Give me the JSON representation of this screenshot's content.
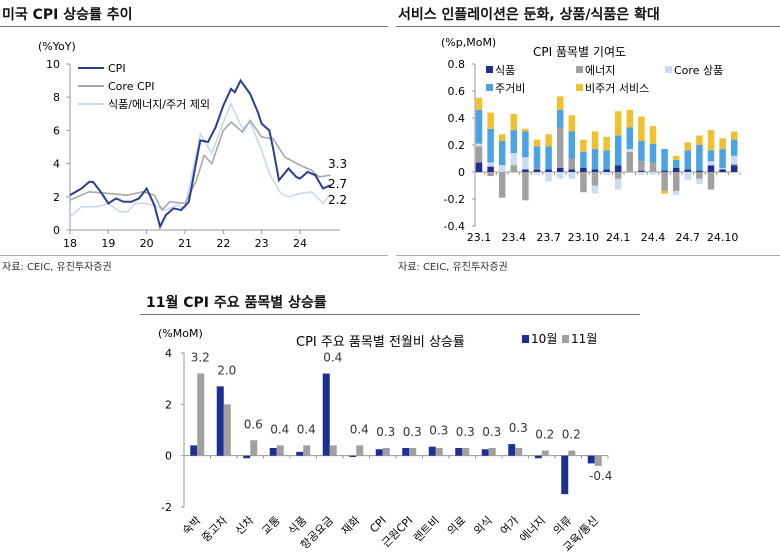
{
  "panels": {
    "left_title": "미국 CPI 상승률 추이",
    "right_title": "서비스 인플레이션은 둔화, 상품/식품은 확대",
    "bottom_title": "11월 CPI 주요 품목별 상승률",
    "source_left": "자료: CEIC, 유진투자증권",
    "source_right": "자료: CEIC, 유진투자증권"
  },
  "colors": {
    "navy": "#1f2f8f",
    "gray": "#a0a0a0",
    "lightblue": "#c8ddf5",
    "blue": "#4ba3e3",
    "gold": "#f0c030",
    "cpi": "#2c3e8c",
    "core": "#a8a8a8",
    "ex": "#c4daf2"
  },
  "chart_data": [
    {
      "type": "line",
      "title": "",
      "ylabel": "(%YoY)",
      "ylim": [
        0,
        10
      ],
      "yticks": [
        "0",
        "2",
        "4",
        "6",
        "8",
        "10"
      ],
      "xticks": [
        "18",
        "19",
        "20",
        "21",
        "22",
        "23",
        "24"
      ],
      "xlim": [
        18,
        24.95
      ],
      "series": [
        {
          "name": "CPI",
          "end_label": "2.7",
          "points": [
            [
              18.0,
              2.1
            ],
            [
              18.3,
              2.5
            ],
            [
              18.5,
              2.9
            ],
            [
              18.6,
              2.9
            ],
            [
              18.8,
              2.3
            ],
            [
              19.0,
              1.6
            ],
            [
              19.2,
              1.9
            ],
            [
              19.4,
              1.7
            ],
            [
              19.6,
              1.7
            ],
            [
              19.8,
              1.9
            ],
            [
              20.0,
              2.5
            ],
            [
              20.2,
              1.5
            ],
            [
              20.35,
              0.2
            ],
            [
              20.5,
              0.9
            ],
            [
              20.7,
              1.3
            ],
            [
              20.9,
              1.2
            ],
            [
              21.1,
              1.7
            ],
            [
              21.3,
              4.2
            ],
            [
              21.4,
              5.4
            ],
            [
              21.6,
              5.3
            ],
            [
              21.8,
              6.2
            ],
            [
              22.0,
              7.5
            ],
            [
              22.2,
              8.5
            ],
            [
              22.3,
              8.3
            ],
            [
              22.45,
              9.0
            ],
            [
              22.7,
              8.2
            ],
            [
              22.9,
              7.1
            ],
            [
              23.0,
              6.4
            ],
            [
              23.2,
              6.0
            ],
            [
              23.3,
              4.9
            ],
            [
              23.45,
              3.0
            ],
            [
              23.7,
              3.7
            ],
            [
              23.9,
              3.2
            ],
            [
              24.0,
              3.1
            ],
            [
              24.2,
              3.5
            ],
            [
              24.4,
              3.3
            ],
            [
              24.6,
              2.5
            ],
            [
              24.8,
              2.7
            ]
          ]
        },
        {
          "name": "Core CPI",
          "end_label": "3.3",
          "points": [
            [
              18.0,
              1.8
            ],
            [
              18.5,
              2.3
            ],
            [
              19.0,
              2.2
            ],
            [
              19.5,
              2.1
            ],
            [
              19.9,
              2.3
            ],
            [
              20.2,
              2.1
            ],
            [
              20.4,
              1.2
            ],
            [
              20.6,
              1.7
            ],
            [
              21.0,
              1.6
            ],
            [
              21.3,
              3.0
            ],
            [
              21.5,
              4.5
            ],
            [
              21.7,
              4.0
            ],
            [
              22.0,
              6.0
            ],
            [
              22.2,
              6.5
            ],
            [
              22.5,
              5.9
            ],
            [
              22.7,
              6.6
            ],
            [
              23.0,
              5.6
            ],
            [
              23.3,
              5.5
            ],
            [
              23.6,
              4.4
            ],
            [
              24.0,
              3.9
            ],
            [
              24.3,
              3.6
            ],
            [
              24.5,
              3.2
            ],
            [
              24.8,
              3.3
            ]
          ]
        },
        {
          "name": "식품/에너지/주거 제외",
          "end_label": "2.2",
          "points": [
            [
              18.0,
              0.8
            ],
            [
              18.3,
              1.4
            ],
            [
              18.7,
              1.4
            ],
            [
              19.0,
              1.6
            ],
            [
              19.3,
              1.1
            ],
            [
              19.5,
              1.1
            ],
            [
              19.7,
              1.6
            ],
            [
              20.0,
              1.6
            ],
            [
              20.3,
              1.4
            ],
            [
              20.5,
              1.2
            ],
            [
              20.8,
              1.5
            ],
            [
              21.0,
              1.3
            ],
            [
              21.4,
              5.8
            ],
            [
              21.7,
              4.6
            ],
            [
              22.0,
              6.5
            ],
            [
              22.2,
              7.6
            ],
            [
              22.5,
              6.1
            ],
            [
              22.7,
              6.5
            ],
            [
              23.0,
              4.8
            ],
            [
              23.2,
              3.4
            ],
            [
              23.5,
              2.2
            ],
            [
              23.7,
              2.0
            ],
            [
              24.0,
              2.2
            ],
            [
              24.3,
              2.3
            ],
            [
              24.6,
              1.6
            ],
            [
              24.8,
              2.2
            ]
          ]
        }
      ]
    },
    {
      "type": "bar",
      "stacked": true,
      "title": "CPI 품목별 기여도",
      "ylabel": "(%p,MoM)",
      "ylim": [
        -0.4,
        0.8
      ],
      "yticks": [
        "-0.4",
        "-0.2",
        "0",
        "0.2",
        "0.4",
        "0.6",
        "0.8"
      ],
      "categories": [
        "23.1",
        "23.2",
        "23.3",
        "23.4",
        "23.5",
        "23.6",
        "23.7",
        "23.8",
        "23.9",
        "23.10",
        "23.11",
        "23.12",
        "24.1",
        "24.2",
        "24.3",
        "24.4",
        "24.5",
        "24.6",
        "24.7",
        "24.8",
        "24.9",
        "24.10",
        "24.11"
      ],
      "xtick_labels": [
        "23.1",
        "23.4",
        "23.7",
        "23.10",
        "24.1",
        "24.4",
        "24.7",
        "24.10"
      ],
      "series": [
        {
          "name": "식품",
          "values": [
            0.07,
            0.04,
            0.0,
            0.0,
            0.02,
            0.02,
            0.02,
            0.03,
            0.02,
            0.03,
            0.02,
            0.02,
            0.05,
            0.0,
            0.01,
            0.0,
            0.01,
            0.03,
            0.02,
            0.01,
            0.05,
            0.02,
            0.05
          ]
        },
        {
          "name": "에너지",
          "values": [
            0.12,
            -0.03,
            -0.19,
            0.05,
            -0.21,
            0.01,
            0.0,
            0.3,
            0.08,
            -0.15,
            -0.1,
            0.0,
            -0.05,
            0.15,
            0.07,
            0.07,
            -0.14,
            -0.14,
            0.0,
            -0.05,
            -0.13,
            0.0,
            0.01
          ]
        },
        {
          "name": "Core 상품",
          "values": [
            0.02,
            0.03,
            0.05,
            0.09,
            0.09,
            -0.02,
            -0.07,
            -0.05,
            -0.05,
            0.0,
            -0.06,
            -0.02,
            -0.08,
            0.02,
            -0.02,
            -0.02,
            0.0,
            -0.03,
            -0.06,
            -0.04,
            0.03,
            0.01,
            0.06
          ]
        },
        {
          "name": "주거비",
          "values": [
            0.25,
            0.25,
            0.18,
            0.17,
            0.19,
            0.16,
            0.17,
            0.13,
            0.2,
            0.12,
            0.15,
            0.14,
            0.22,
            0.16,
            0.15,
            0.14,
            0.16,
            0.06,
            0.14,
            0.19,
            0.08,
            0.14,
            0.12
          ]
        },
        {
          "name": "비주거 서비스",
          "values": [
            0.09,
            0.12,
            0.05,
            0.12,
            0.02,
            0.05,
            0.09,
            0.1,
            0.12,
            0.09,
            0.13,
            0.1,
            0.18,
            0.13,
            0.18,
            0.13,
            -0.02,
            0.03,
            0.06,
            0.07,
            0.15,
            0.08,
            0.06
          ]
        }
      ]
    },
    {
      "type": "bar",
      "title": "CPI 주요 품목별 전월비 상승률",
      "ylabel": "(%MoM)",
      "ylim": [
        -2,
        4
      ],
      "yticks": [
        "-2",
        "0",
        "2",
        "4"
      ],
      "categories": [
        "숙박",
        "중고차",
        "신차",
        "교통",
        "식품",
        "항공요금",
        "재화",
        "CPI",
        "근원CPI",
        "렌트비",
        "의료",
        "외식",
        "여가",
        "에너지",
        "의류",
        "교육/통신"
      ],
      "series": [
        {
          "name": "10월",
          "values": [
            0.4,
            2.7,
            -0.1,
            0.3,
            0.15,
            3.2,
            -0.05,
            0.25,
            0.3,
            0.35,
            0.3,
            0.25,
            0.45,
            -0.1,
            -1.5,
            -0.3
          ]
        },
        {
          "name": "11월",
          "values": [
            3.2,
            2.0,
            0.6,
            0.4,
            0.4,
            0.4,
            0.4,
            0.3,
            0.3,
            0.3,
            0.3,
            0.3,
            0.3,
            0.2,
            0.2,
            -0.4
          ]
        }
      ],
      "data_labels": [
        "3.2",
        "2.0",
        "0.6",
        "0.4",
        "0.4",
        "0.4",
        "0.4",
        "0.3",
        "0.3",
        "0.3",
        "0.3",
        "0.3",
        "0.3",
        "0.2",
        "0.2",
        "-0.4"
      ]
    }
  ]
}
